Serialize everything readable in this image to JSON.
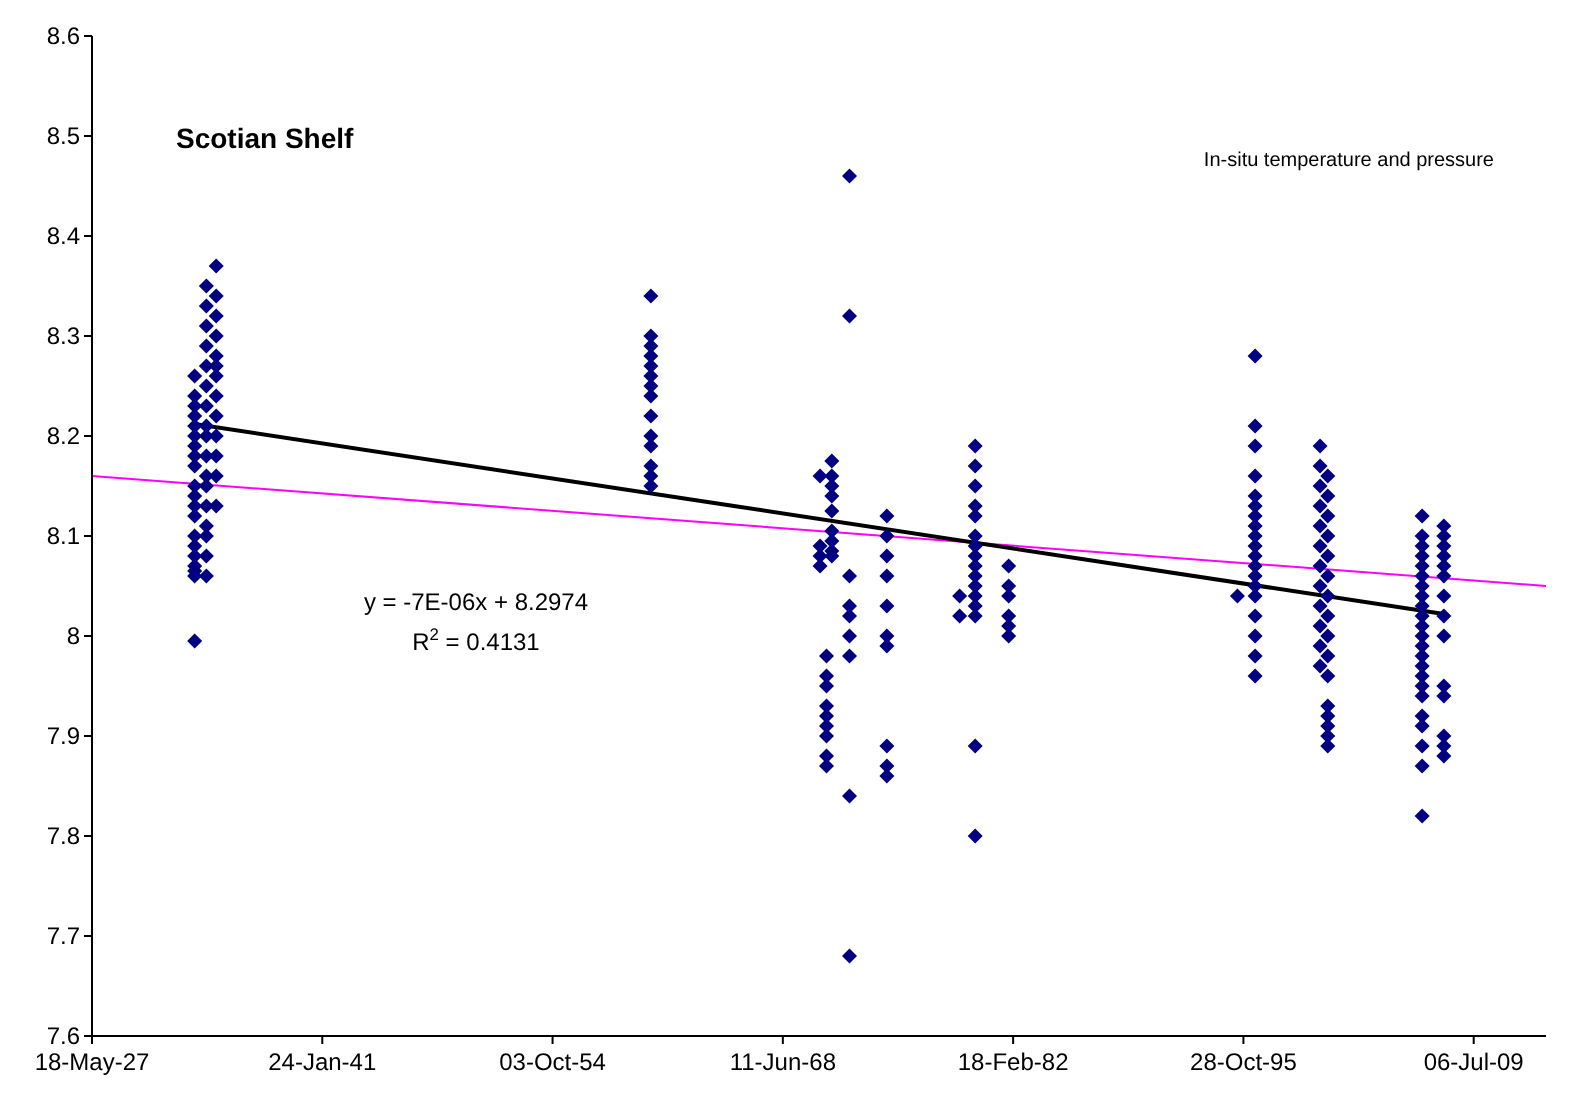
{
  "chart_data": {
    "type": "scatter",
    "title": "Scotian Shelf",
    "annotations": [
      "In-situ temperature and pressure",
      "y = -7E-06x + 8.2974",
      "R$^{2}$ = 0.4131"
    ],
    "xlim": [
      "1927-05-18",
      "2013-10-23"
    ],
    "xticks": [
      {
        "value": "1927-05-18",
        "label": "18-May-27"
      },
      {
        "value": "1941-01-24",
        "label": "24-Jan-41"
      },
      {
        "value": "1954-10-03",
        "label": "03-Oct-54"
      },
      {
        "value": "1968-06-11",
        "label": "11-Jun-68"
      },
      {
        "value": "1982-02-18",
        "label": "18-Feb-82"
      },
      {
        "value": "1995-10-28",
        "label": "28-Oct-95"
      },
      {
        "value": "2009-07-06",
        "label": "06-Jul-09"
      }
    ],
    "ylim": [
      7.6,
      8.6
    ],
    "yticks": [
      7.6,
      7.7,
      7.8,
      7.9,
      8,
      8.1,
      8.2,
      8.3,
      8.4,
      8.5,
      8.6
    ],
    "marker": "diamond",
    "grid": false,
    "series": [
      {
        "color": "#000080",
        "x": [
          "1933-06-24",
          "1933-06-24",
          "1933-06-24",
          "1933-06-24",
          "1933-06-24",
          "1933-06-24",
          "1933-06-24",
          "1933-06-24",
          "1933-06-24",
          "1933-06-24",
          "1933-06-24",
          "1933-06-24",
          "1933-06-24",
          "1933-06-24",
          "1933-06-24",
          "1933-06-24",
          "1933-06-24",
          "1933-06-24",
          "1933-06-24",
          "1933-06-24"
        ],
        "values": [
          8.26,
          8.24,
          8.23,
          8.22,
          8.21,
          8.2,
          8.19,
          8.18,
          8.17,
          8.15,
          8.14,
          8.13,
          8.12,
          8.1,
          8.09,
          8.08,
          8.07,
          8.065,
          8.06,
          7.995
        ]
      },
      {
        "color": "#000080",
        "x": [
          "1934-03-05",
          "1934-03-05",
          "1934-03-05",
          "1934-03-05",
          "1934-03-05",
          "1934-03-05",
          "1934-03-05",
          "1934-03-05",
          "1934-03-05",
          "1934-03-05",
          "1934-03-05",
          "1934-03-05",
          "1934-03-05",
          "1934-03-05",
          "1934-03-05",
          "1934-03-05",
          "1934-03-05"
        ],
        "values": [
          8.35,
          8.33,
          8.31,
          8.29,
          8.27,
          8.25,
          8.23,
          8.21,
          8.2,
          8.18,
          8.16,
          8.15,
          8.13,
          8.11,
          8.1,
          8.08,
          8.06
        ]
      },
      {
        "color": "#000080",
        "x": [
          "1934-10-05",
          "1934-10-05",
          "1934-10-05",
          "1934-10-05",
          "1934-10-05",
          "1934-10-05",
          "1934-10-05",
          "1934-10-05",
          "1934-10-05",
          "1934-10-05",
          "1934-10-05",
          "1934-10-05",
          "1934-10-05"
        ],
        "values": [
          8.37,
          8.34,
          8.32,
          8.3,
          8.28,
          8.27,
          8.26,
          8.24,
          8.22,
          8.2,
          8.18,
          8.16,
          8.13
        ]
      },
      {
        "color": "#000080",
        "x": [
          "1960-08-07",
          "1960-08-07",
          "1960-08-07",
          "1960-08-07",
          "1960-08-07",
          "1960-08-07",
          "1960-08-07",
          "1960-08-07",
          "1960-08-07",
          "1960-08-07",
          "1960-08-07",
          "1960-08-07",
          "1960-08-07",
          "1960-08-07"
        ],
        "values": [
          8.34,
          8.3,
          8.29,
          8.28,
          8.27,
          8.26,
          8.25,
          8.24,
          8.22,
          8.2,
          8.19,
          8.17,
          8.16,
          8.15
        ]
      },
      {
        "color": "#000080",
        "x": [
          "1970-08-28",
          "1970-08-28",
          "1970-08-28",
          "1970-08-28"
        ],
        "values": [
          8.16,
          8.09,
          8.08,
          8.07
        ]
      },
      {
        "color": "#000080",
        "x": [
          "1971-05-10",
          "1971-05-10",
          "1971-05-10",
          "1971-05-10",
          "1971-05-10",
          "1971-05-10",
          "1971-05-10",
          "1971-05-10",
          "1971-05-10"
        ],
        "values": [
          8.175,
          8.16,
          8.15,
          8.14,
          8.125,
          8.105,
          8.095,
          8.085,
          8.08
        ]
      },
      {
        "color": "#000080",
        "x": [
          "1971-01-15",
          "1971-01-15",
          "1971-01-15",
          "1971-01-15",
          "1971-01-15",
          "1971-01-15",
          "1971-01-15",
          "1971-01-15",
          "1971-01-15"
        ],
        "values": [
          7.98,
          7.96,
          7.95,
          7.93,
          7.92,
          7.91,
          7.9,
          7.88,
          7.87
        ]
      },
      {
        "color": "#000080",
        "x": [
          "1972-05-28",
          "1972-05-28",
          "1972-05-28",
          "1972-05-28",
          "1972-05-28",
          "1972-05-28",
          "1972-05-28",
          "1972-05-28",
          "1972-05-28"
        ],
        "values": [
          8.46,
          8.32,
          8.06,
          8.03,
          8.02,
          8.0,
          7.98,
          7.84,
          7.68
        ]
      },
      {
        "color": "#000080",
        "x": [
          "1974-08-18",
          "1974-08-18",
          "1974-08-18",
          "1974-08-18",
          "1974-08-18",
          "1974-08-18",
          "1974-08-18",
          "1974-08-18",
          "1974-08-18",
          "1974-08-18"
        ],
        "values": [
          8.12,
          8.1,
          8.08,
          8.06,
          8.03,
          8,
          7.99,
          7.89,
          7.87,
          7.86
        ]
      },
      {
        "color": "#000080",
        "x": [
          "1978-12-14",
          "1978-12-14"
        ],
        "values": [
          8.04,
          8.02
        ]
      },
      {
        "color": "#000080",
        "x": [
          "1979-11-17",
          "1979-11-17",
          "1979-11-17",
          "1979-11-17",
          "1979-11-17",
          "1979-11-17",
          "1979-11-17",
          "1979-11-17",
          "1979-11-17",
          "1979-11-17",
          "1979-11-17",
          "1979-11-17",
          "1979-11-17",
          "1979-11-17",
          "1979-11-17",
          "1979-11-17"
        ],
        "values": [
          8.19,
          8.17,
          8.15,
          8.13,
          8.12,
          8.1,
          8.09,
          8.08,
          8.07,
          8.06,
          8.05,
          8.04,
          8.03,
          8.02,
          7.89,
          7.8
        ]
      },
      {
        "color": "#000080",
        "x": [
          "1981-11-13",
          "1981-11-13",
          "1981-11-13",
          "1981-11-13",
          "1981-11-13",
          "1981-11-13"
        ],
        "values": [
          8.07,
          8.05,
          8.04,
          8.02,
          8.01,
          8.0
        ]
      },
      {
        "color": "#000080",
        "x": [
          "1995-06-20"
        ],
        "values": [
          8.04
        ]
      },
      {
        "color": "#000080",
        "x": [
          "1996-07-08",
          "1996-07-08",
          "1996-07-08",
          "1996-07-08",
          "1996-07-08",
          "1996-07-08",
          "1996-07-08",
          "1996-07-08",
          "1996-07-08",
          "1996-07-08",
          "1996-07-08",
          "1996-07-08",
          "1996-07-08",
          "1996-07-08",
          "1996-07-08",
          "1996-07-08",
          "1996-07-08",
          "1996-07-08",
          "1996-07-08"
        ],
        "values": [
          8.28,
          8.21,
          8.19,
          8.16,
          8.14,
          8.13,
          8.12,
          8.11,
          8.1,
          8.09,
          8.08,
          8.07,
          8.06,
          8.05,
          8.04,
          8.02,
          8.0,
          7.98,
          7.96
        ]
      },
      {
        "color": "#000080",
        "x": [
          "2000-05-18",
          "2000-05-18",
          "2000-05-18",
          "2000-05-18",
          "2000-05-18",
          "2000-05-18",
          "2000-05-18",
          "2000-05-18",
          "2000-05-18",
          "2000-05-18",
          "2000-05-18",
          "2000-05-18"
        ],
        "values": [
          8.19,
          8.17,
          8.15,
          8.13,
          8.11,
          8.09,
          8.07,
          8.05,
          8.03,
          8.01,
          7.99,
          7.97
        ]
      },
      {
        "color": "#000080",
        "x": [
          "2000-11-02",
          "2000-11-02",
          "2000-11-02",
          "2000-11-02",
          "2000-11-02",
          "2000-11-02",
          "2000-11-02",
          "2000-11-02",
          "2000-11-02",
          "2000-11-02",
          "2000-11-02",
          "2000-11-02",
          "2000-11-02",
          "2000-11-02",
          "2000-11-02",
          "2000-11-02"
        ],
        "values": [
          8.16,
          8.14,
          8.12,
          8.1,
          8.08,
          8.06,
          8.04,
          8.02,
          8,
          7.98,
          7.96,
          7.93,
          7.92,
          7.91,
          7.9,
          7.89
        ]
      },
      {
        "color": "#000080",
        "x": [
          "2006-06-13",
          "2006-06-13",
          "2006-06-13",
          "2006-06-13",
          "2006-06-13",
          "2006-06-13",
          "2006-06-13",
          "2006-06-13",
          "2006-06-13",
          "2006-06-13",
          "2006-06-13",
          "2006-06-13",
          "2006-06-13",
          "2006-06-13",
          "2006-06-13",
          "2006-06-13",
          "2006-06-13",
          "2006-06-13",
          "2006-06-13",
          "2006-06-13",
          "2006-06-13",
          "2006-06-13",
          "2006-06-13"
        ],
        "values": [
          8.12,
          8.1,
          8.09,
          8.08,
          8.07,
          8.06,
          8.05,
          8.04,
          8.03,
          8.02,
          8.01,
          8.0,
          7.99,
          7.98,
          7.97,
          7.96,
          7.95,
          7.94,
          7.92,
          7.91,
          7.89,
          7.87,
          7.82
        ]
      },
      {
        "color": "#000080",
        "x": [
          "2007-09-27",
          "2007-09-27",
          "2007-09-27",
          "2007-09-27",
          "2007-09-27",
          "2007-09-27",
          "2007-09-27",
          "2007-09-27",
          "2007-09-27",
          "2007-09-27",
          "2007-09-27",
          "2007-09-27",
          "2007-09-27",
          "2007-09-27"
        ],
        "values": [
          8.11,
          8.1,
          8.09,
          8.08,
          8.07,
          8.06,
          8.04,
          8.02,
          8.0,
          7.95,
          7.94,
          7.9,
          7.89,
          7.88
        ]
      },
      {
        "type": "line",
        "color": "#ff00ff",
        "line_style": "solid",
        "marker": "none",
        "x": [
          "1927-05-18",
          "2013-10-23"
        ],
        "values": [
          8.16,
          8.05
        ]
      },
      {
        "type": "line",
        "color": "#000000",
        "line_style": "solid",
        "marker": "none",
        "x": [
          "1933-06-24",
          "2007-09-27"
        ],
        "values": [
          8.212,
          8.022
        ]
      }
    ]
  }
}
